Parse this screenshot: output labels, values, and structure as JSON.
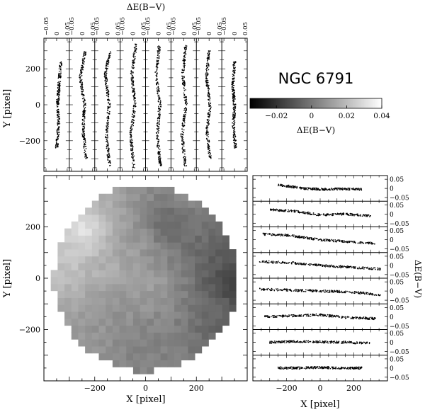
{
  "figure": {
    "title": "NGC 6791",
    "colorbar": {
      "label": "ΔE(B−V)",
      "ticks": [
        "−0.02",
        "0",
        "0.02",
        "0.04"
      ],
      "range": [
        -0.035,
        0.04
      ],
      "palette": "black-to-white grayscale"
    }
  },
  "chart_data": [
    {
      "type": "heatmap",
      "panel": "main-map",
      "xlabel": "X [pixel]",
      "ylabel": "Y [pixel]",
      "xlim": [
        -400,
        400
      ],
      "ylim": [
        -400,
        400
      ],
      "x_ticks": [
        "−200",
        "0",
        "200"
      ],
      "y_ticks": [
        "−200",
        "0",
        "200"
      ],
      "footprint": "circle, radius ≈ 360 pixel",
      "blobs": [
        {
          "x": -245,
          "y": 175,
          "value": 0.038,
          "note": "brightest region (upper left)"
        },
        {
          "x": -300,
          "y": 60,
          "value": 0.022
        },
        {
          "x": -150,
          "y": 30,
          "value": 0.016
        },
        {
          "x": -50,
          "y": 120,
          "value": 0.008
        },
        {
          "x": 40,
          "y": -30,
          "value": 0.01
        },
        {
          "x": 170,
          "y": 330,
          "value": 0.004
        },
        {
          "x": 300,
          "y": 80,
          "value": -0.012
        },
        {
          "x": 340,
          "y": 0,
          "value": -0.03,
          "note": "darkest region (right edge)"
        },
        {
          "x": 100,
          "y": 200,
          "value": -0.015
        },
        {
          "x": 280,
          "y": -170,
          "value": -0.01
        },
        {
          "x": 0,
          "y": -250,
          "value": -0.002
        },
        {
          "x": -130,
          "y": -140,
          "value": 0.004
        }
      ]
    },
    {
      "type": "scatter",
      "panel": "vertical-strips",
      "xlabel": "ΔE(B−V)",
      "ylabel": "Y [pixel]",
      "strip_count": 8,
      "strip_ticks": [
        "0.05",
        "0",
        "−0.05"
      ],
      "x_range_per_strip": [
        -0.06,
        0.06
      ],
      "ylim": [
        -370,
        370
      ],
      "y_ticks": [
        "−200",
        "0",
        "200"
      ],
      "strips": [
        {
          "y_range": [
            -240,
            240
          ],
          "trend": [
            [
              -240,
              0.0
            ],
            [
              -120,
              0.01
            ],
            [
              0,
              0.005
            ],
            [
              120,
              0.012
            ],
            [
              240,
              0.02
            ]
          ]
        },
        {
          "y_range": [
            -300,
            300
          ],
          "trend": [
            [
              -300,
              0.02
            ],
            [
              -150,
              0.005
            ],
            [
              0,
              0.012
            ],
            [
              150,
              -0.008
            ],
            [
              300,
              0.015
            ]
          ]
        },
        {
          "y_range": [
            -340,
            300
          ],
          "trend": [
            [
              -340,
              0.01
            ],
            [
              -170,
              -0.005
            ],
            [
              0,
              0.008
            ],
            [
              170,
              -0.01
            ],
            [
              300,
              0.012
            ]
          ]
        },
        {
          "y_range": [
            -350,
            340
          ],
          "trend": [
            [
              -350,
              0.005
            ],
            [
              -170,
              -0.01
            ],
            [
              0,
              0.01
            ],
            [
              170,
              -0.005
            ],
            [
              340,
              0.015
            ]
          ]
        },
        {
          "y_range": [
            -340,
            330
          ],
          "trend": [
            [
              -340,
              0.01
            ],
            [
              -170,
              -0.005
            ],
            [
              0,
              0.008
            ],
            [
              170,
              -0.01
            ],
            [
              330,
              0.005
            ]
          ]
        },
        {
          "y_range": [
            -340,
            330
          ],
          "trend": [
            [
              -340,
              0.008
            ],
            [
              -170,
              -0.008
            ],
            [
              0,
              0.012
            ],
            [
              170,
              -0.005
            ],
            [
              330,
              0.01
            ]
          ]
        },
        {
          "y_range": [
            -300,
            300
          ],
          "trend": [
            [
              -300,
              0.005
            ],
            [
              -150,
              -0.01
            ],
            [
              0,
              0.005
            ],
            [
              150,
              -0.012
            ],
            [
              300,
              0.0
            ]
          ]
        },
        {
          "y_range": [
            -240,
            240
          ],
          "trend": [
            [
              -240,
              0.005
            ],
            [
              -120,
              -0.005
            ],
            [
              0,
              0.0
            ],
            [
              120,
              -0.008
            ],
            [
              240,
              0.0
            ]
          ]
        }
      ]
    },
    {
      "type": "scatter",
      "panel": "horizontal-strips",
      "xlabel": "X [pixel]",
      "ylabel": "ΔE(B−V)",
      "strip_count": 8,
      "strip_ticks": [
        "0.05",
        "0",
        "−0.05"
      ],
      "y_range_per_strip": [
        -0.07,
        0.07
      ],
      "xlim": [
        -400,
        400
      ],
      "x_ticks": [
        "−200",
        "0",
        "200"
      ],
      "strips": [
        {
          "x_range": [
            -250,
            250
          ],
          "trend": [
            [
              -250,
              0.02
            ],
            [
              -100,
              0.0
            ],
            [
              0,
              -0.005
            ],
            [
              120,
              -0.003
            ],
            [
              250,
              -0.005
            ]
          ]
        },
        {
          "x_range": [
            -300,
            300
          ],
          "trend": [
            [
              -300,
              0.025
            ],
            [
              -150,
              0.015
            ],
            [
              0,
              -0.005
            ],
            [
              150,
              0.0
            ],
            [
              300,
              -0.01
            ]
          ]
        },
        {
          "x_range": [
            -340,
            330
          ],
          "trend": [
            [
              -340,
              0.03
            ],
            [
              -200,
              0.025
            ],
            [
              0,
              0.0
            ],
            [
              150,
              -0.01
            ],
            [
              330,
              -0.02
            ]
          ]
        },
        {
          "x_range": [
            -360,
            360
          ],
          "trend": [
            [
              -360,
              0.02
            ],
            [
              -180,
              0.015
            ],
            [
              0,
              0.0
            ],
            [
              180,
              -0.01
            ],
            [
              360,
              -0.02
            ]
          ]
        },
        {
          "x_range": [
            -360,
            360
          ],
          "trend": [
            [
              -360,
              0.01
            ],
            [
              -180,
              0.005
            ],
            [
              0,
              0.0
            ],
            [
              180,
              -0.005
            ],
            [
              360,
              -0.02
            ]
          ]
        },
        {
          "x_range": [
            -330,
            330
          ],
          "trend": [
            [
              -330,
              0.0
            ],
            [
              -160,
              0.005
            ],
            [
              0,
              0.01
            ],
            [
              160,
              -0.005
            ],
            [
              330,
              -0.01
            ]
          ]
        },
        {
          "x_range": [
            -300,
            300
          ],
          "trend": [
            [
              -300,
              0.0
            ],
            [
              -150,
              0.005
            ],
            [
              0,
              0.003
            ],
            [
              150,
              0.0
            ],
            [
              300,
              -0.005
            ]
          ]
        },
        {
          "x_range": [
            -250,
            250
          ],
          "trend": [
            [
              -250,
              0.0
            ],
            [
              -120,
              0.0
            ],
            [
              0,
              0.003
            ],
            [
              120,
              0.0
            ],
            [
              250,
              0.0
            ]
          ]
        }
      ]
    }
  ]
}
